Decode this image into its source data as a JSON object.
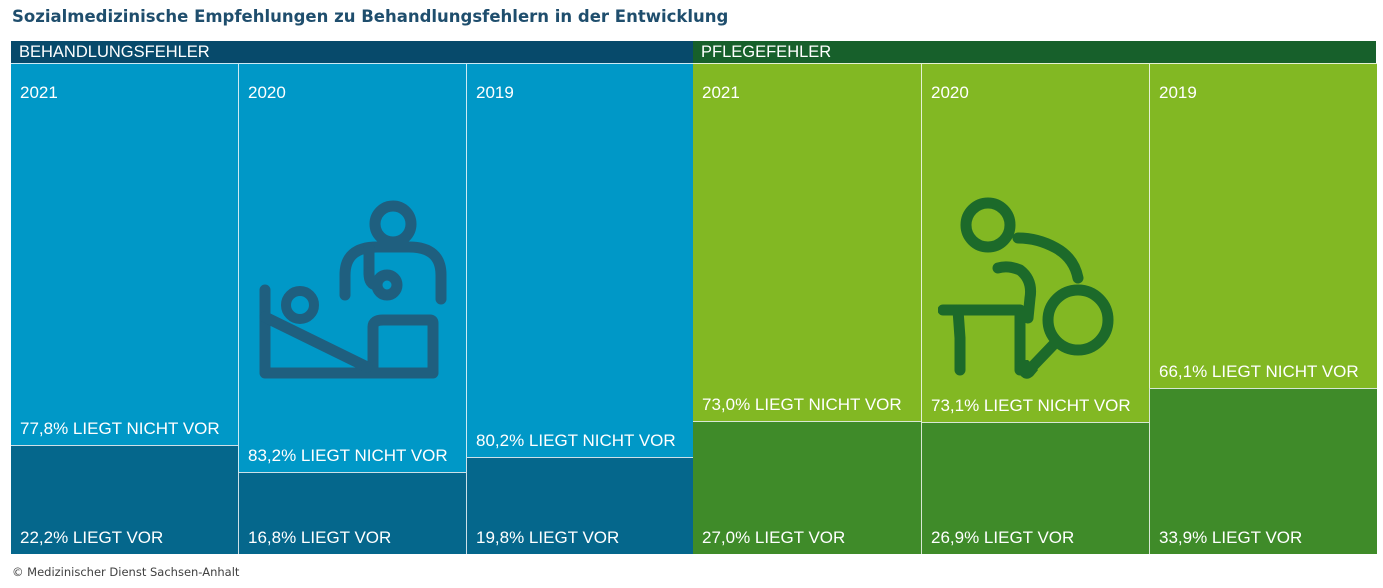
{
  "title": "Sozialmedizinische Empfehlungen zu Behandlungsfehlern in der Entwicklung",
  "footer": "© Medizinischer Dienst Sachsen-Anhalt",
  "colors": {
    "behandlung_top": "#0098c7",
    "behandlung_bottom": "#05678c",
    "behandlung_header": "#074a6b",
    "pflege_top": "#82b823",
    "pflege_bottom": "#3f8b29",
    "pflege_header": "#17602b"
  },
  "icons": [
    "doctor-patient-bed-icon",
    "caregiver-magnifier-icon"
  ],
  "chart_data": {
    "type": "treemap",
    "title": "Sozialmedizinische Empfehlungen zu Behandlungsfehlern in der Entwicklung",
    "panels": [
      {
        "name": "BEHANDLUNGSFEHLER",
        "columns": [
          {
            "year": "2021",
            "liegt_nicht_vor": 77.8,
            "liegt_vor": 22.2,
            "label_nicht_vor": "77,8% LIEGT NICHT VOR",
            "label_vor": "22,2% LIEGT VOR"
          },
          {
            "year": "2020",
            "liegt_nicht_vor": 83.2,
            "liegt_vor": 16.8,
            "label_nicht_vor": "83,2% LIEGT NICHT VOR",
            "label_vor": "16,8% LIEGT VOR"
          },
          {
            "year": "2019",
            "liegt_nicht_vor": 80.2,
            "liegt_vor": 19.8,
            "label_nicht_vor": "80,2% LIEGT NICHT VOR",
            "label_vor": "19,8% LIEGT VOR"
          }
        ]
      },
      {
        "name": "PFLEGEFEHLER",
        "columns": [
          {
            "year": "2021",
            "liegt_nicht_vor": 73.0,
            "liegt_vor": 27.0,
            "label_nicht_vor": "73,0% LIEGT NICHT VOR",
            "label_vor": "27,0% LIEGT VOR"
          },
          {
            "year": "2020",
            "liegt_nicht_vor": 73.1,
            "liegt_vor": 26.9,
            "label_nicht_vor": "73,1% LIEGT NICHT VOR",
            "label_vor": "26,9% LIEGT VOR"
          },
          {
            "year": "2019",
            "liegt_nicht_vor": 66.1,
            "liegt_vor": 33.9,
            "label_nicht_vor": "66,1% LIEGT NICHT VOR",
            "label_vor": "33,9% LIEGT VOR"
          }
        ]
      }
    ]
  }
}
